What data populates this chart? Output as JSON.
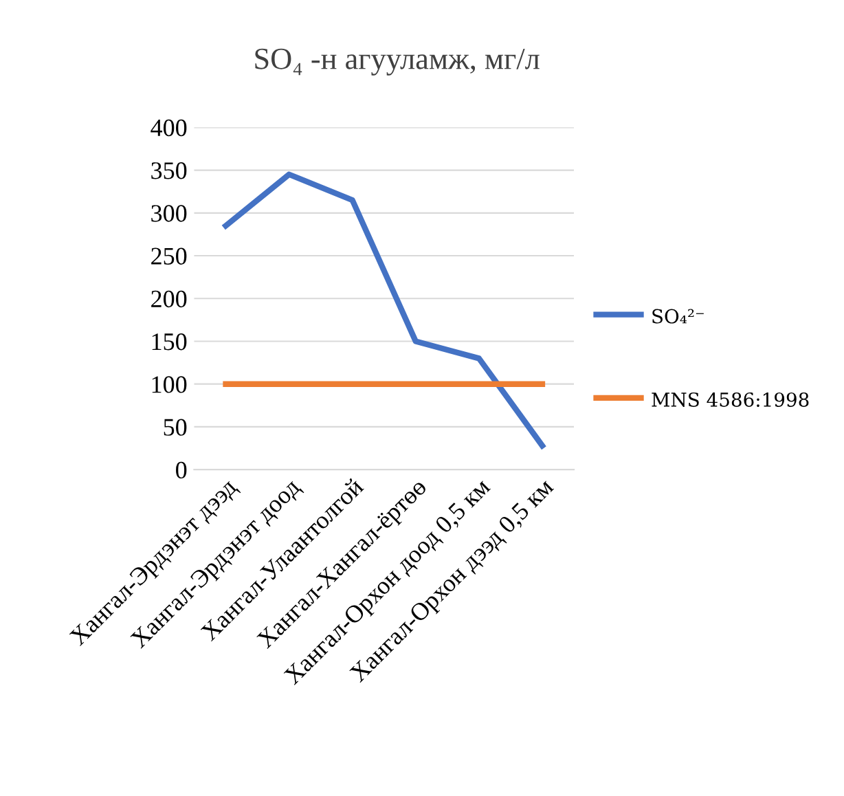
{
  "chart_data": {
    "type": "line",
    "title": "SO₄ -н агууламж, мг/л",
    "categories": [
      "Хангал-Эрдэнэт дээд",
      "Хангал-Эрдэнэт доод",
      "Хангал-Улаантолгой",
      "Хангал-Хангал-ёртөө",
      "Хангал-Орхон доод 0,5 км",
      "Хангал-Орхон дээд 0,5 км"
    ],
    "series": [
      {
        "name": "SO₄²⁻",
        "color": "#4472c4",
        "values": [
          285,
          345,
          315,
          150,
          130,
          28
        ]
      },
      {
        "name": "MNS 4586:1998",
        "color": "#ed7d31",
        "values": [
          100,
          100,
          100,
          100,
          100,
          100
        ]
      }
    ],
    "ylim": [
      0,
      400
    ],
    "yticks": [
      0,
      50,
      100,
      150,
      200,
      250,
      300,
      350,
      400
    ],
    "grid": "y",
    "legend": "right",
    "marker": "none",
    "line_style": "solid"
  }
}
